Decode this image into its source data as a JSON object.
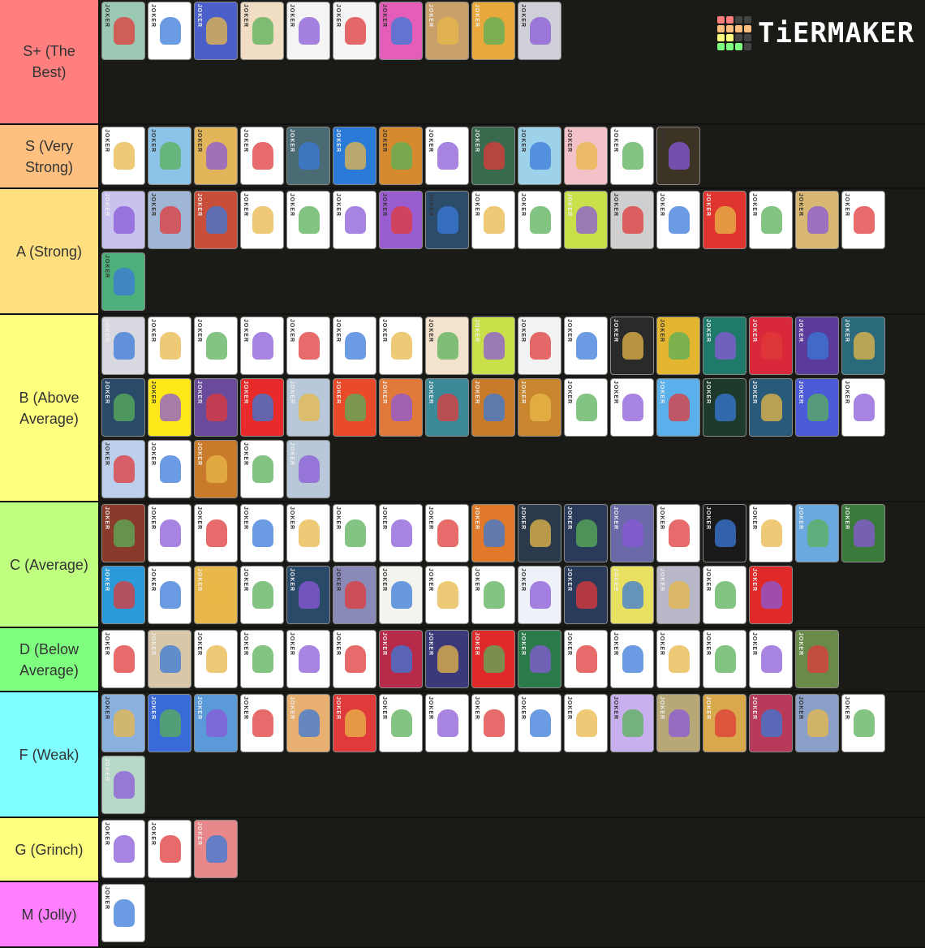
{
  "logo": {
    "text": "TiERMAKER",
    "grid_colors": [
      "#ff7f7f",
      "#ff7f7f",
      "#444",
      "#444",
      "#ffbf7f",
      "#ffbf7f",
      "#ffbf7f",
      "#ffbf7f",
      "#ffff7f",
      "#ffff7f",
      "#444",
      "#444",
      "#7fff7f",
      "#7fff7f",
      "#7fff7f",
      "#444"
    ]
  },
  "card_mark": "JOKER",
  "tiers": [
    {
      "label": "S+ (The Best)",
      "color": "#ff7f7f",
      "cards": [
        "#9cc9b4",
        "#ffffff",
        "#4a5fc9",
        "#f1dcc4",
        "#f4f4f4",
        "#f4f4f4",
        "#e45db8",
        "#c9a06a",
        "#e8a83a",
        "#cfcfd8"
      ]
    },
    {
      "label": "S (Very Strong)",
      "color": "#ffbf7f",
      "cards": [
        "#ffffff",
        "#8cc3e8",
        "#e3b55a",
        "#ffffff",
        "#4a6a74",
        "#2a7ad8",
        "#d58a2e",
        "#ffffff",
        "#3a6a4e",
        "#9ed1ea",
        "#f2c2c8",
        "#ffffff",
        "#3b3324"
      ]
    },
    {
      "label": "A (Strong)",
      "color": "#ffdf7f",
      "cards": [
        "#c9c2ee",
        "#9fb6d6",
        "#c94e3a",
        "#ffffff",
        "#ffffff",
        "#ffffff",
        "#9a5dd1",
        "#2c4c6c",
        "#ffffff",
        "#ffffff",
        "#c9e04a",
        "#cfcfcf",
        "#ffffff",
        "#e0342e",
        "#ffffff",
        "#d9b873",
        "#ffffff",
        "#4cb07a"
      ]
    },
    {
      "label": "B (Above Average)",
      "color": "#ffff7f",
      "cards": [
        "#d8d8e0",
        "#ffffff",
        "#ffffff",
        "#ffffff",
        "#ffffff",
        "#ffffff",
        "#ffffff",
        "#f3e3cc",
        "#c9e04a",
        "#f2f2f2",
        "#ffffff",
        "#2a2a2a",
        "#e4b52e",
        "#1f7a6a",
        "#d8283a",
        "#5a3a9a",
        "#2a6a7a",
        "#2a4a6a",
        "#ffe81a",
        "#6a4a9a",
        "#e82a2a",
        "#b8c8d8",
        "#e84a2a",
        "#e0793a",
        "#3a8a9a",
        "#c97a2a",
        "#c9862e",
        "#ffffff",
        "#ffffff",
        "#5ab0ea",
        "#1e3a2a",
        "#2a5a7a",
        "#4a5ad8",
        "#ffffff",
        "#bcd0ee",
        "#ffffff",
        "#c97a2a",
        "#ffffff",
        "#b8c8d8"
      ]
    },
    {
      "label": "C (Average)",
      "color": "#bfff7f",
      "cards": [
        "#8a3a2a",
        "#ffffff",
        "#ffffff",
        "#ffffff",
        "#ffffff",
        "#ffffff",
        "#ffffff",
        "#ffffff",
        "#e07a2a",
        "#2a3a4a",
        "#2a3a5a",
        "#6a6aa8",
        "#ffffff",
        "#1a1a1a",
        "#ffffff",
        "#6aa8e0",
        "#3a7a3a",
        "#2a9ad8",
        "#ffffff",
        "#e8b84a",
        "#ffffff",
        "#2a4a6a",
        "#8a8ab8",
        "#f4f4ee",
        "#ffffff",
        "#ffffff",
        "#eef2f8",
        "#2a3a5a",
        "#e8e060",
        "#b8b8c8",
        "#ffffff",
        "#e02a2a"
      ]
    },
    {
      "label": "D (Below Average)",
      "color": "#7fff7f",
      "cards": [
        "#ffffff",
        "#d8c8a8",
        "#ffffff",
        "#ffffff",
        "#ffffff",
        "#ffffff",
        "#b82a4a",
        "#3a3a7a",
        "#e02a2a",
        "#2a7a4a",
        "#ffffff",
        "#ffffff",
        "#ffffff",
        "#ffffff",
        "#ffffff",
        "#6a8a4a"
      ]
    },
    {
      "label": "F (Weak)",
      "color": "#7fffff",
      "cards": [
        "#8ab0e0",
        "#3a6ad8",
        "#5a9ad8",
        "#ffffff",
        "#e8b070",
        "#e03a3a",
        "#ffffff",
        "#ffffff",
        "#ffffff",
        "#ffffff",
        "#ffffff",
        "#c8b0ee",
        "#b8a878",
        "#d8a84a",
        "#b83a5a",
        "#8aa0c8",
        "#ffffff",
        "#b8d8c8",
        "#e04a3a"
      ]
    },
    {
      "label": "G (Grinch)",
      "color": "#ffff7f",
      "cards": [
        "#ffffff",
        "#ffffff",
        "#e8888a"
      ]
    },
    {
      "label": "M (Jolly)",
      "color": "#ff7fff",
      "cards": [
        "#ffffff"
      ]
    }
  ]
}
